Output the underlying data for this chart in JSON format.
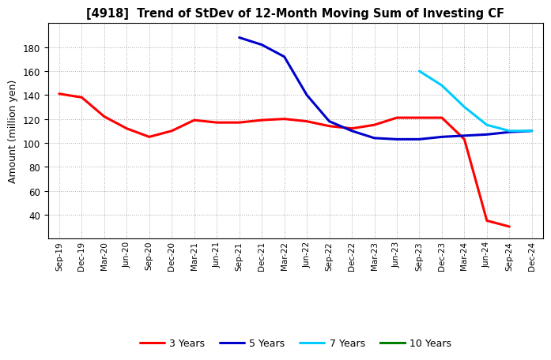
{
  "title": "[4918]  Trend of StDev of 12-Month Moving Sum of Investing CF",
  "ylabel": "Amount (million yen)",
  "background_color": "#ffffff",
  "grid_color": "#999999",
  "ylim": [
    20,
    200
  ],
  "yticks": [
    40,
    60,
    80,
    100,
    120,
    140,
    160,
    180
  ],
  "x_labels": [
    "Sep-19",
    "Dec-19",
    "Mar-20",
    "Jun-20",
    "Sep-20",
    "Dec-20",
    "Mar-21",
    "Jun-21",
    "Sep-21",
    "Dec-21",
    "Mar-22",
    "Jun-22",
    "Sep-22",
    "Dec-22",
    "Mar-23",
    "Jun-23",
    "Sep-23",
    "Dec-23",
    "Mar-24",
    "Jun-24",
    "Sep-24",
    "Dec-24"
  ],
  "series_3y_x": [
    0,
    1,
    2,
    3,
    4,
    5,
    6,
    7,
    8,
    9,
    10,
    11,
    12,
    13,
    14,
    15,
    16,
    17,
    18,
    19,
    20
  ],
  "series_3y_y": [
    141,
    138,
    122,
    112,
    105,
    110,
    119,
    117,
    117,
    119,
    120,
    118,
    114,
    112,
    115,
    121,
    121,
    121,
    103,
    35,
    30
  ],
  "series_3y_color": "#ff0000",
  "series_3y_label": "3 Years",
  "series_5y_x": [
    8,
    9,
    10,
    11,
    12,
    13,
    14,
    15,
    16,
    17,
    18,
    19,
    20,
    21
  ],
  "series_5y_y": [
    188,
    182,
    172,
    140,
    118,
    110,
    104,
    103,
    103,
    105,
    106,
    107,
    109,
    110
  ],
  "series_5y_color": "#0000cc",
  "series_5y_label": "5 Years",
  "series_7y_x": [
    16,
    17,
    18,
    19,
    20,
    21
  ],
  "series_7y_y": [
    160,
    148,
    130,
    115,
    110,
    110
  ],
  "series_7y_color": "#00ccff",
  "series_7y_label": "7 Years",
  "series_10y_x": [],
  "series_10y_y": [],
  "series_10y_color": "#008000",
  "series_10y_label": "10 Years"
}
